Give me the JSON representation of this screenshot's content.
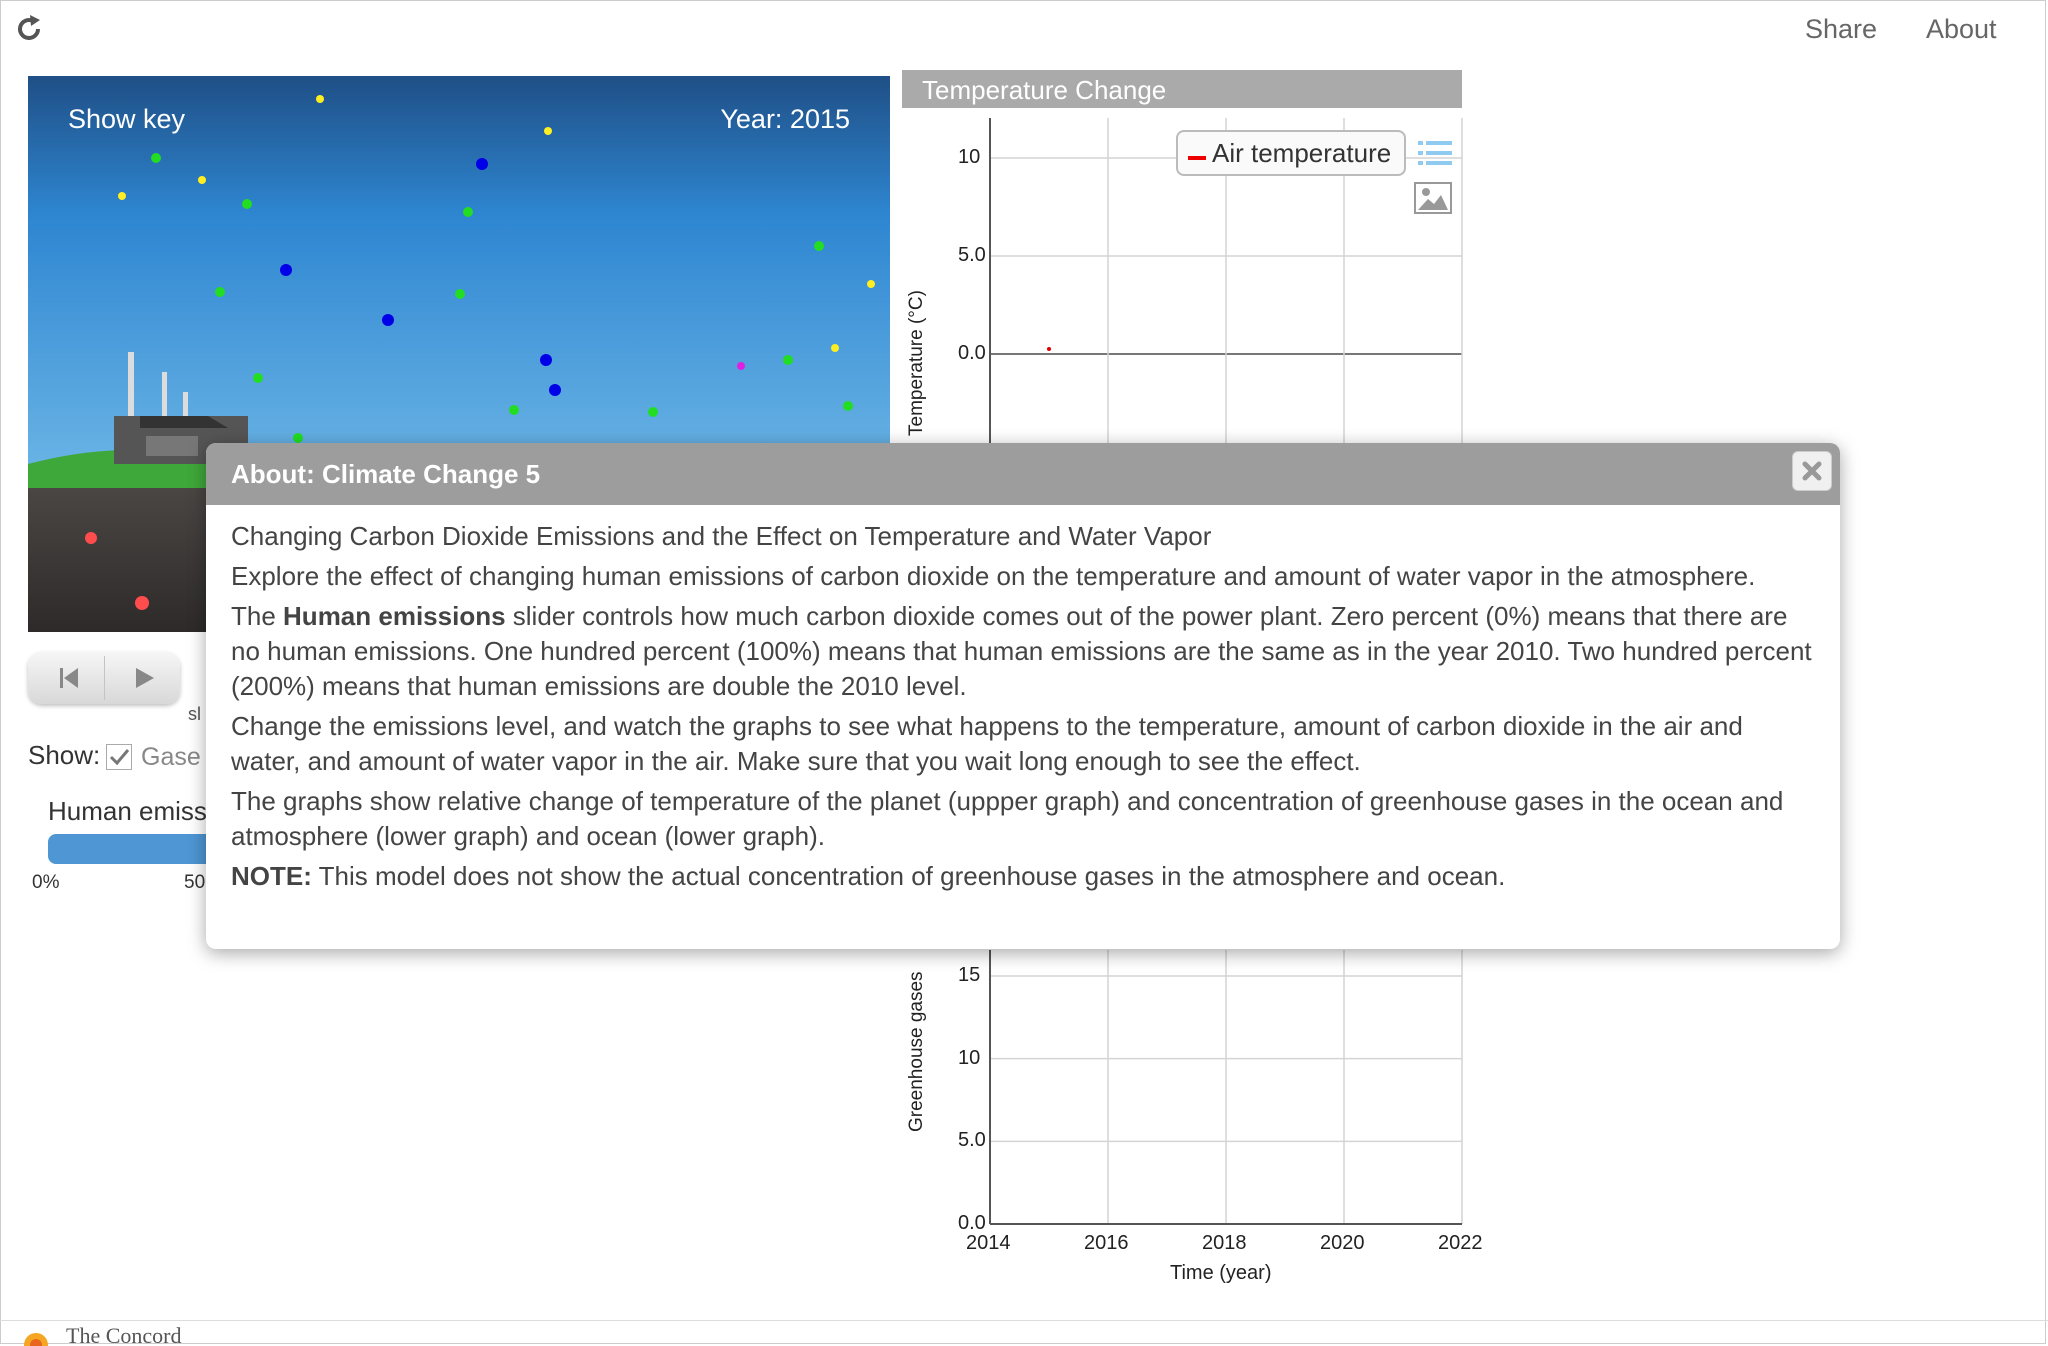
{
  "header": {
    "share_label": "Share",
    "about_label": "About"
  },
  "simulation": {
    "show_key_label": "Show key",
    "year_label": "Year: 2015"
  },
  "controls": {
    "show_label": "Show:",
    "gases_label": "Gase",
    "slider_mini_label": "sl",
    "human_emissions_label": "Human emiss",
    "tick_0": "0%",
    "tick_50": "50"
  },
  "graphs": {
    "temperature_title": "Temperature Change",
    "temperature_ylabel": "Temperature (°C)",
    "temperature_legend": "Air temperature",
    "temperature_yticks": [
      "10",
      "5.0",
      "0.0"
    ],
    "gases_ylabel": "Greenhouse gases",
    "gases_yticks": [
      "15",
      "10",
      "5.0",
      "0.0"
    ],
    "xticks": [
      "2014",
      "2016",
      "2018",
      "2020",
      "2022"
    ],
    "xlabel": "Time (year)",
    "series_color": "#e00000"
  },
  "chart_data": [
    {
      "type": "line",
      "title": "Temperature Change",
      "xlabel": "",
      "ylabel": "Temperature (°C)",
      "xlim": [
        2014,
        2022
      ],
      "ylim": [
        0,
        10
      ],
      "series": [
        {
          "name": "Air temperature",
          "x": [
            2015
          ],
          "y": [
            0.1
          ]
        }
      ]
    },
    {
      "type": "line",
      "title": "",
      "xlabel": "Time (year)",
      "ylabel": "Greenhouse gases",
      "xlim": [
        2014,
        2022
      ],
      "ylim": [
        0,
        15
      ],
      "series": []
    }
  ],
  "modal": {
    "title": "About: Climate Change 5",
    "p1": "Changing Carbon Dioxide Emissions and the Effect on Temperature and Water Vapor",
    "p2": "Explore the effect of changing human emissions of carbon dioxide on the temperature and amount of water vapor in the atmosphere.",
    "p3_pre": "The ",
    "p3_bold": "Human emissions",
    "p3_post": " slider controls how much carbon dioxide comes out of the power plant. Zero percent (0%) means that there are no human emissions. One hundred percent (100%) means that human emissions are the same as in the year 2010. Two hundred percent (200%) means that human emissions are double the 2010 level.",
    "p4": "Change the emissions level, and watch the graphs to see what happens to the temperature, amount of carbon dioxide in the air and water, and amount of water vapor in the air. Make sure that you wait long enough to see the effect.",
    "p5": "The graphs show relative change of temperature of the planet (uppper graph) and concentration of greenhouse gases in the ocean and atmosphere (lower graph) and ocean (lower graph).",
    "p6_bold": "NOTE:",
    "p6_post": " This model does not show the actual concentration of greenhouse gases in the atmosphere and ocean."
  },
  "footer": {
    "logo_text": "The Concord"
  }
}
